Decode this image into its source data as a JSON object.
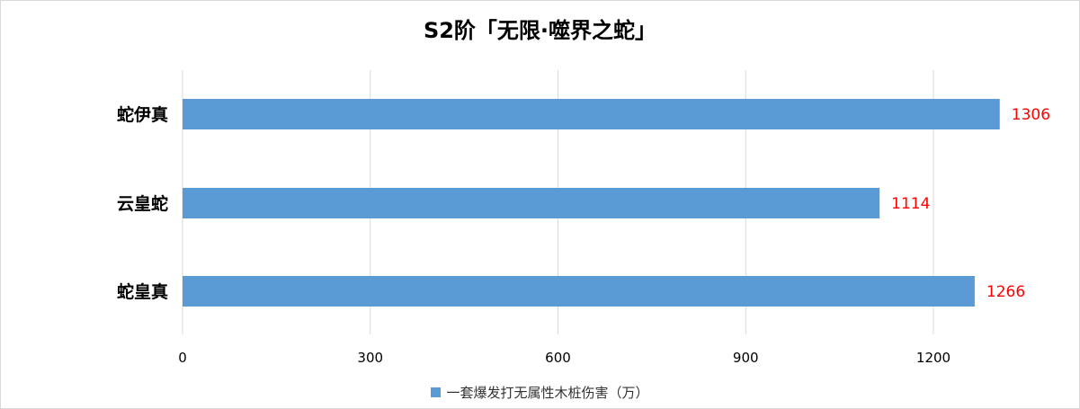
{
  "chart_data": {
    "type": "bar",
    "orientation": "horizontal",
    "title": "S2阶「无限·噬界之蛇」",
    "categories": [
      "蛇伊真",
      "云皇蛇",
      "蛇皇真"
    ],
    "series": [
      {
        "name": "一套爆发打无属性木桩伤害（万）",
        "values": [
          1306,
          1114,
          1266
        ]
      }
    ],
    "data_labels": [
      "1306",
      "1114",
      "1266"
    ],
    "xlim": [
      0,
      1350
    ],
    "xticks": [
      0,
      300,
      600,
      900,
      1200
    ],
    "xtick_labels": [
      "0",
      "300",
      "600",
      "900",
      "1200"
    ],
    "grid": "vertical",
    "legend_position": "bottom",
    "colors": {
      "bar": "#5b9bd5",
      "data_label": "#ff0000",
      "grid": "#d9d9d9",
      "category_label": "#000000",
      "tick_label": "#000000"
    }
  }
}
